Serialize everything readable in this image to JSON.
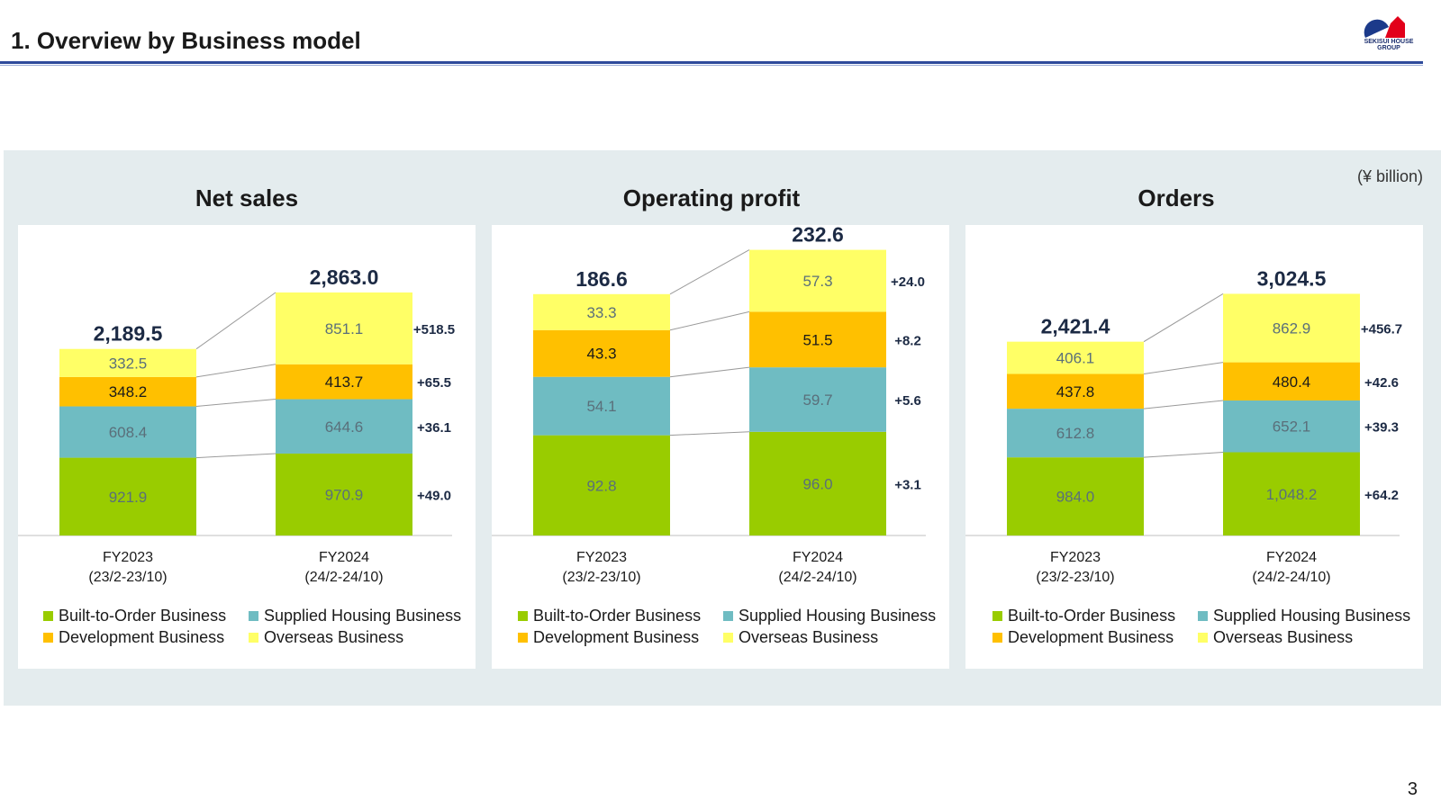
{
  "header": {
    "title": "1. Overview by Business model",
    "logo_text": "SEKISUI HOUSE GROUP"
  },
  "unit": "(¥ billion)",
  "page_number": "3",
  "colors": {
    "built": "#99cc00",
    "supplied": "#6fbcc2",
    "development": "#ffc000",
    "overseas": "#ffff66",
    "axis": "#bfbfbf",
    "total": "#1c2a44"
  },
  "legend": {
    "built": "Built-to-Order Business",
    "supplied": "Supplied Housing Business",
    "development": "Development Business",
    "overseas": "Overseas Business"
  },
  "chart_data": [
    {
      "type": "bar",
      "title": "Net sales",
      "categories": [
        {
          "line1": "FY2023",
          "line2": "(23/2-23/10)"
        },
        {
          "line1": "FY2024",
          "line2": "(24/2-24/10)"
        }
      ],
      "series": [
        {
          "key": "built",
          "name": "Built-to-Order Business",
          "values": [
            921.9,
            970.9
          ],
          "labels": [
            "921.9",
            "970.9"
          ],
          "change": "+49.0"
        },
        {
          "key": "supplied",
          "name": "Supplied Housing Business",
          "values": [
            608.4,
            644.6
          ],
          "labels": [
            "608.4",
            "644.6"
          ],
          "change": "+36.1"
        },
        {
          "key": "development",
          "name": "Development Business",
          "values": [
            348.2,
            413.7
          ],
          "labels": [
            "348.2",
            "413.7"
          ],
          "change": "+65.5"
        },
        {
          "key": "overseas",
          "name": "Overseas Business",
          "values": [
            332.5,
            851.1
          ],
          "labels": [
            "332.5",
            "851.1"
          ],
          "change": "+518.5"
        }
      ],
      "totals": [
        "2,189.5",
        "2,863.0"
      ],
      "ymax": 3200
    },
    {
      "type": "bar",
      "title": "Operating profit",
      "categories": [
        {
          "line1": "FY2023",
          "line2": "(23/2-23/10)"
        },
        {
          "line1": "FY2024",
          "line2": "(24/2-24/10)"
        }
      ],
      "series": [
        {
          "key": "built",
          "name": "Built-to-Order Business",
          "values": [
            92.8,
            96.0
          ],
          "labels": [
            "92.8",
            "96.0"
          ],
          "change": "+3.1"
        },
        {
          "key": "supplied",
          "name": "Supplied Housing Business",
          "values": [
            54.1,
            59.7
          ],
          "labels": [
            "54.1",
            "59.7"
          ],
          "change": "+5.6"
        },
        {
          "key": "development",
          "name": "Development Business",
          "values": [
            43.3,
            51.5
          ],
          "labels": [
            "43.3",
            "51.5"
          ],
          "change": "+8.2"
        },
        {
          "key": "overseas",
          "name": "Overseas Business",
          "values": [
            33.3,
            57.3
          ],
          "labels": [
            "33.3",
            "57.3"
          ],
          "change": "+24.0"
        }
      ],
      "totals": [
        "186.6",
        "232.6"
      ],
      "ymax": 250
    },
    {
      "type": "bar",
      "title": "Orders",
      "categories": [
        {
          "line1": "FY2023",
          "line2": "(23/2-23/10)"
        },
        {
          "line1": "FY2024",
          "line2": "(24/2-24/10)"
        }
      ],
      "series": [
        {
          "key": "built",
          "name": "Built-to-Order Business",
          "values": [
            984.0,
            1048.2
          ],
          "labels": [
            "984.0",
            "1,048.2"
          ],
          "change": "+64.2"
        },
        {
          "key": "supplied",
          "name": "Supplied Housing Business",
          "values": [
            612.8,
            652.1
          ],
          "labels": [
            "612.8",
            "652.1"
          ],
          "change": "+39.3"
        },
        {
          "key": "development",
          "name": "Development Business",
          "values": [
            437.8,
            480.4
          ],
          "labels": [
            "437.8",
            "480.4"
          ],
          "change": "+42.6"
        },
        {
          "key": "overseas",
          "name": "Overseas Business",
          "values": [
            406.1,
            862.9
          ],
          "labels": [
            "406.1",
            "862.9"
          ],
          "change": "+456.7"
        }
      ],
      "totals": [
        "2,421.4",
        "3,024.5"
      ],
      "ymax": 3400
    }
  ]
}
